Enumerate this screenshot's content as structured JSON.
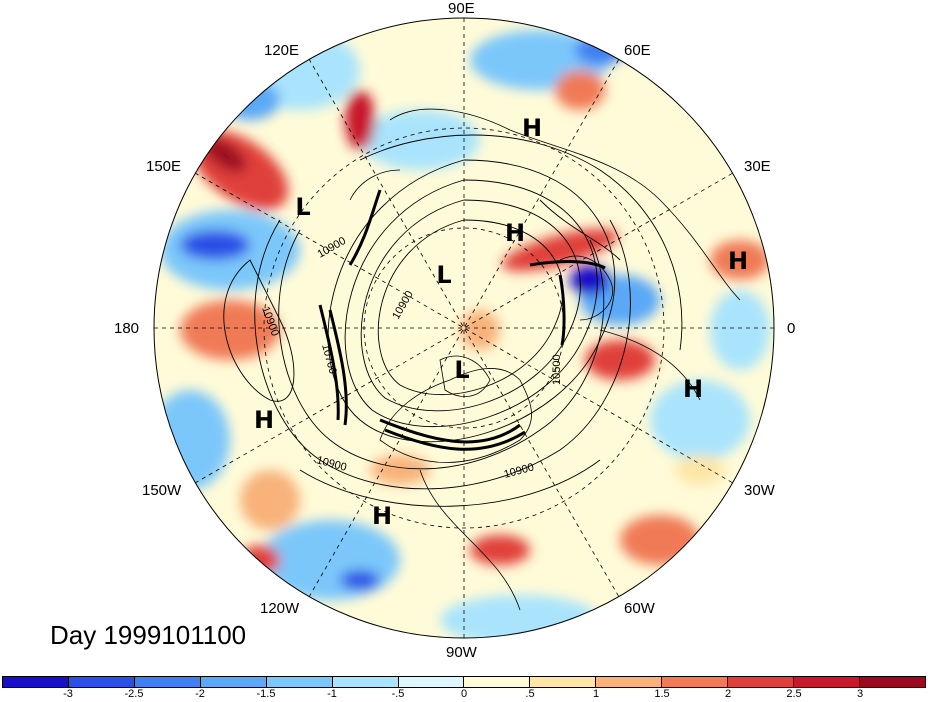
{
  "map": {
    "projection": "north-polar-stereographic",
    "longitude_labels": {
      "top": "90E",
      "upper_left": "120E",
      "upper_right": "60E",
      "left_upper": "150E",
      "right_upper": "30E",
      "left": "180",
      "right": "0",
      "left_lower": "150W",
      "right_lower": "30W",
      "lower_left": "120W",
      "lower_right": "60W",
      "bottom": "90W"
    },
    "contour_labels": [
      "10900",
      "10900",
      "10700",
      "10900",
      "10500",
      "10900",
      "10900"
    ],
    "pressure_centers": [
      {
        "name": "high-center",
        "label": "H"
      },
      {
        "name": "low-center",
        "label": "L"
      },
      {
        "name": "high-center",
        "label": "H"
      },
      {
        "name": "low-center",
        "label": "L"
      },
      {
        "name": "high-center",
        "label": "H"
      },
      {
        "name": "high-center",
        "label": "H"
      },
      {
        "name": "high-center",
        "label": "H"
      },
      {
        "name": "high-center",
        "label": "H"
      },
      {
        "name": "low-center",
        "label": "L"
      }
    ]
  },
  "date_label": "Day 1999101100",
  "colorbar": {
    "tick_labels": [
      "-3",
      "-2.5",
      "-2",
      "-1.5",
      "-1",
      "-.5",
      "0",
      ".5",
      "1",
      "1.5",
      "2",
      "2.5",
      "3"
    ],
    "colors": [
      "#1a0fc8",
      "#2a50e6",
      "#3f80f0",
      "#5aa8f6",
      "#7cc7fa",
      "#a9e4fc",
      "#def6fd",
      "#fffbd8",
      "#fde6a6",
      "#f8b27a",
      "#f07a56",
      "#e0403a",
      "#c8182a",
      "#9c0820"
    ]
  }
}
